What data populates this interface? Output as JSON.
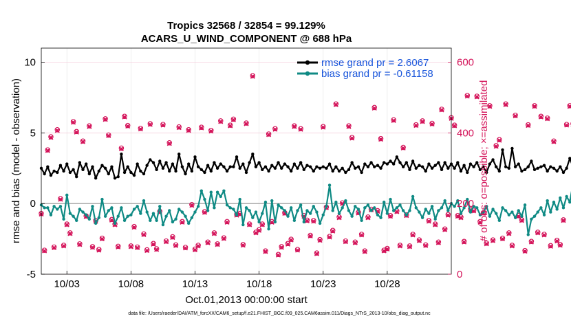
{
  "chart_data": {
    "type": "line",
    "title_line1": "Tropics 32568 / 32854 = 99.129%",
    "title_line2": "ACARS_U_WIND_COMPONENT @ 688 hPa",
    "xlabel": "Oct.01,2013 00:00:00 start",
    "ylabel": "rmse and bias (model - observation)",
    "ylabel_right": "# of obs: o=possible; ×=assimilated",
    "footer": "data file: /Users/raeder/DAI/ATM_forcXX/CAM6_setup/f.e21.FHIST_BGC.f09_025.CAM6assim.011/Diags_NTrS_2013-10/obs_diag_output.nc",
    "xlim": [
      1,
      33
    ],
    "ylim": [
      -5,
      11
    ],
    "ylim_right": [
      0,
      640
    ],
    "x_ticks": [
      3,
      8,
      13,
      18,
      23,
      28
    ],
    "x_tick_labels": [
      "10/03",
      "10/08",
      "10/13",
      "10/18",
      "10/23",
      "10/28"
    ],
    "y_ticks": [
      -5,
      0,
      5,
      10
    ],
    "y_tick_labels": [
      "-5",
      "0",
      "5",
      "10"
    ],
    "y_right_ticks": [
      0,
      200,
      400,
      600
    ],
    "y_right_tick_labels": [
      "0",
      "200",
      "400",
      "600"
    ],
    "grid": true,
    "legend_position": "top-right",
    "colors": {
      "rmse": "#000000",
      "bias": "#0f8a84",
      "obs": "#d4145a",
      "zero_line": "#b0b0b0"
    },
    "x_start": 1.0,
    "x_step": 0.25,
    "series": [
      {
        "name": "rmse grand pr = 2.6067",
        "key": "rmse",
        "values": [
          2.5,
          2.1,
          2.6,
          2.0,
          2.3,
          2.2,
          2.7,
          2.3,
          2.8,
          2.2,
          2.4,
          1.9,
          2.9,
          2.4,
          2.8,
          2.1,
          2.6,
          1.8,
          2.3,
          2.7,
          2.5,
          2.1,
          2.6,
          1.8,
          1.9,
          3.5,
          2.2,
          2.6,
          2.2,
          2.0,
          2.8,
          2.3,
          2.1,
          2.7,
          3.1,
          2.9,
          2.4,
          3.0,
          2.5,
          2.9,
          2.3,
          2.8,
          2.3,
          3.5,
          2.6,
          2.1,
          2.8,
          2.3,
          3.3,
          2.6,
          2.4,
          2.2,
          2.7,
          2.3,
          2.9,
          2.5,
          2.8,
          2.6,
          2.3,
          2.6,
          2.6,
          3.3,
          2.5,
          2.8,
          2.2,
          2.9,
          3.5,
          2.6,
          2.9,
          2.4,
          2.6,
          2.3,
          2.7,
          2.5,
          2.9,
          2.5,
          2.8,
          2.6,
          2.3,
          2.8,
          2.5,
          2.9,
          2.4,
          2.7,
          2.6,
          2.3,
          2.6,
          2.5,
          2.6,
          2.5,
          2.8,
          2.3,
          2.6,
          2.3,
          2.5,
          2.2,
          2.4,
          2.9,
          2.5,
          2.6,
          2.2,
          2.8,
          2.6,
          2.9,
          2.6,
          2.7,
          2.5,
          2.9,
          2.8,
          3.0,
          2.8,
          3.3,
          2.9,
          2.6,
          2.9,
          2.4,
          3.0,
          2.5,
          2.7,
          2.6,
          2.3,
          2.8,
          2.5,
          2.7,
          2.9,
          2.4,
          2.9,
          2.5,
          2.8,
          2.5,
          2.9,
          2.3,
          2.7,
          2.2,
          2.8,
          2.6,
          2.9,
          2.4,
          2.6,
          2.2,
          2.8,
          3.1,
          2.6,
          2.3,
          3.8,
          2.6,
          2.5,
          3.9,
          2.6,
          2.8,
          2.3,
          2.4,
          2.6,
          3.0,
          2.4,
          2.5,
          2.6,
          2.7,
          2.3,
          2.6,
          2.5,
          2.3,
          2.6,
          2.2,
          2.5,
          3.2,
          2.6,
          2.3
        ]
      },
      {
        "name": "bias grand pr = -0.61158",
        "key": "bias",
        "values": [
          -0.1,
          -0.3,
          -0.3,
          -0.8,
          -0.2,
          -0.4,
          -0.2,
          -1.1,
          0.6,
          -0.7,
          -0.9,
          -1.2,
          -0.4,
          -0.6,
          -0.8,
          -1.1,
          -0.2,
          -1.4,
          -1.0,
          0.3,
          -0.9,
          -0.5,
          -0.3,
          -1.4,
          -0.9,
          -0.3,
          -1.2,
          -0.9,
          -0.8,
          -0.4,
          -0.2,
          -0.7,
          0.2,
          -0.6,
          -1.2,
          -0.7,
          -1.2,
          -0.2,
          -1.5,
          -0.9,
          -0.5,
          -1.3,
          -1.1,
          -0.4,
          -0.6,
          -0.9,
          -1.4,
          -1.0,
          -0.6,
          -0.2,
          0.9,
          0.3,
          -0.5,
          0.8,
          -0.3,
          0.8,
          0.5,
          0.9,
          -0.1,
          -0.3,
          -0.4,
          -0.8,
          0.3,
          -1.5,
          -0.3,
          -0.5,
          -1.0,
          -0.6,
          -1.3,
          -0.7,
          0.1,
          -1.8,
          0.2,
          -1.3,
          -0.1,
          -0.3,
          -0.5,
          -0.9,
          -0.3,
          -1.2,
          -0.5,
          -0.1,
          -1.3,
          -0.5,
          -0.7,
          -0.2,
          -0.6,
          -1.4,
          -0.8,
          -0.2,
          1.3,
          -0.5,
          0.1,
          -0.7,
          -0.3,
          0.2,
          -0.5,
          -0.9,
          -0.2,
          -0.4,
          -1.2,
          -0.3,
          -0.1,
          -0.5,
          -0.3,
          -0.8,
          -1.0,
          0.1,
          -0.7,
          0.3,
          -0.5,
          -0.3,
          -0.1,
          -0.5,
          -0.8,
          -0.5,
          0.5,
          -0.3,
          -0.6,
          -1.0,
          -0.4,
          -0.7,
          -0.2,
          -1.1,
          -0.5,
          -0.3,
          0.2,
          -0.5,
          0.0,
          -0.2,
          0.2,
          -0.7,
          -0.3,
          0.3,
          -0.6,
          -0.2,
          -0.3,
          -0.8,
          -0.6,
          -0.2,
          -0.9,
          -0.4,
          -0.7,
          -1.2,
          -0.3,
          -0.5,
          -0.8,
          -0.6,
          -1.0,
          -0.5,
          -0.9,
          -0.1,
          -2.2,
          -1.1,
          -0.9,
          -0.6,
          -0.3,
          -0.8,
          0.2,
          -0.6,
          0.1,
          -0.4,
          0.4,
          -0.3,
          0.5,
          0.1,
          1.4,
          0.7
        ]
      },
      {
        "name": "# of obs (possible)",
        "key": "obs_possible",
        "values": [
          170,
          66,
          350,
          387,
          75,
          407,
          212,
          80,
          140,
          115,
          430,
          402,
          84,
          375,
          163,
          418,
          76,
          150,
          68,
          100,
          438,
          392,
          153,
          140,
          77,
          355,
          445,
          419,
          78,
          133,
          75,
          411,
          112,
          67,
          424,
          85,
          70,
          176,
          422,
          92,
          370,
          104,
          81,
          415,
          147,
          74,
          407,
          195,
          69,
          80,
          414,
          175,
          89,
          405,
          115,
          84,
          432,
          101,
          147,
          420,
          437,
          167,
          170,
          82,
          426,
          140,
          560,
          117,
          124,
          140,
          64,
          395,
          147,
          410,
          54,
          76,
          172,
          85,
          97,
          418,
          68,
          410,
          164,
          151,
          108,
          150,
          58,
          96,
          416,
          188,
          105,
          122,
          480,
          160,
          200,
          92,
          418,
          385,
          89,
          173,
          111,
          64,
          160,
          182,
          470,
          178,
          382,
          66,
          71,
          164,
          435,
          177,
          80,
          357,
          166,
          78,
          111,
          421,
          95,
          432,
          81,
          150,
          425,
          140,
          89,
          465,
          126,
          167,
          441,
          420,
          164,
          160,
          91,
          504,
          182,
          179,
          502,
          147,
          172,
          86,
          475,
          95,
          362,
          379,
          100,
          480,
          115,
          80,
          448,
          164,
          152,
          65,
          421,
          91,
          475,
          117,
          445,
          111,
          440,
          79,
          375,
          94,
          82,
          152,
          422,
          475,
          424,
          104,
          190,
          0
        ]
      },
      {
        "name": "# of obs (assimilated)",
        "key": "obs_assim",
        "values": [
          170,
          66,
          350,
          387,
          75,
          407,
          212,
          80,
          140,
          115,
          430,
          402,
          84,
          375,
          163,
          418,
          76,
          150,
          68,
          100,
          438,
          392,
          153,
          140,
          77,
          355,
          445,
          419,
          78,
          133,
          75,
          411,
          112,
          67,
          424,
          85,
          70,
          176,
          422,
          92,
          370,
          104,
          81,
          415,
          147,
          74,
          407,
          195,
          69,
          80,
          414,
          175,
          89,
          405,
          115,
          84,
          432,
          101,
          147,
          420,
          437,
          167,
          170,
          82,
          426,
          140,
          560,
          117,
          124,
          140,
          64,
          395,
          147,
          410,
          54,
          76,
          172,
          85,
          97,
          418,
          68,
          410,
          164,
          151,
          108,
          150,
          58,
          96,
          416,
          188,
          105,
          122,
          480,
          160,
          200,
          92,
          418,
          385,
          89,
          173,
          111,
          64,
          160,
          182,
          470,
          178,
          382,
          66,
          71,
          164,
          435,
          177,
          80,
          357,
          166,
          78,
          111,
          421,
          95,
          432,
          81,
          150,
          425,
          140,
          89,
          465,
          126,
          167,
          441,
          420,
          164,
          160,
          91,
          504,
          182,
          179,
          502,
          147,
          172,
          86,
          475,
          95,
          362,
          379,
          100,
          480,
          115,
          80,
          448,
          164,
          152,
          65,
          421,
          91,
          475,
          117,
          445,
          111,
          440,
          79,
          375,
          94,
          82,
          152,
          422,
          475,
          424,
          104,
          190,
          0
        ]
      }
    ]
  }
}
